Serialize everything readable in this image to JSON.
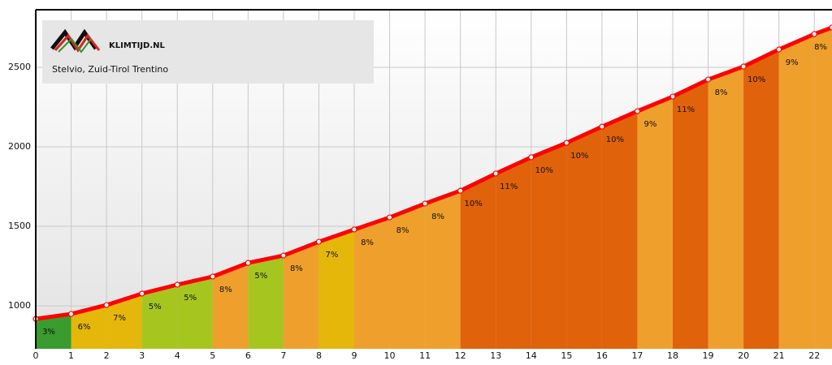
{
  "chart_data": {
    "type": "elevation-profile",
    "logo": "KLIMTIJD.NL",
    "title": "Stelvio, Zuid-Tirol Trentino",
    "x": [
      0,
      1,
      2,
      3,
      4,
      5,
      6,
      7,
      8,
      9,
      10,
      11,
      12,
      13,
      14,
      15,
      16,
      17,
      18,
      19,
      20,
      21,
      22,
      22.5
    ],
    "series": [
      {
        "color": "#ff0000",
        "values": [
          918,
          949,
          1005,
          1077,
          1133,
          1184,
          1270,
          1316,
          1403,
          1480,
          1556,
          1643,
          1724,
          1832,
          1934,
          2025,
          2127,
          2224,
          2316,
          2423,
          2505,
          2612,
          2709,
          2750
        ]
      }
    ],
    "segments": {
      "values": [
        3,
        6,
        7,
        5,
        5,
        8,
        5,
        8,
        7,
        8,
        8,
        8,
        10,
        11,
        10,
        10,
        10,
        9,
        11,
        8,
        10,
        9,
        8
      ],
      "value_labels": [
        "3%",
        "6%",
        "7%",
        "5%",
        "5%",
        "8%",
        "5%",
        "8%",
        "7%",
        "8%",
        "8%",
        "8%",
        "10%",
        "11%",
        "10%",
        "10%",
        "10%",
        "9%",
        "11%",
        "8%",
        "10%",
        "9%",
        "8%"
      ],
      "colors": [
        "#3a9b2f",
        "#e4b70a",
        "#e4b70a",
        "#a6c61f",
        "#a6c61f",
        "#efa02c",
        "#a6c61f",
        "#efa02c",
        "#e4b70a",
        "#efa02c",
        "#efa02c",
        "#efa02c",
        "#e0620b",
        "#e0620b",
        "#e0620b",
        "#e0620b",
        "#e0620b",
        "#efa02c",
        "#e0620b",
        "#efa02c",
        "#e0620b",
        "#efa02c",
        "#efa02c"
      ]
    },
    "xlim": [
      0,
      22.5
    ],
    "xticks": [
      0,
      1,
      2,
      3,
      4,
      5,
      6,
      7,
      8,
      9,
      10,
      11,
      12,
      13,
      14,
      15,
      16,
      17,
      18,
      19,
      20,
      21,
      22
    ],
    "ylim": [
      730,
      2862
    ],
    "yticks": [
      1000,
      1500,
      2000,
      2500
    ],
    "grid": true
  }
}
